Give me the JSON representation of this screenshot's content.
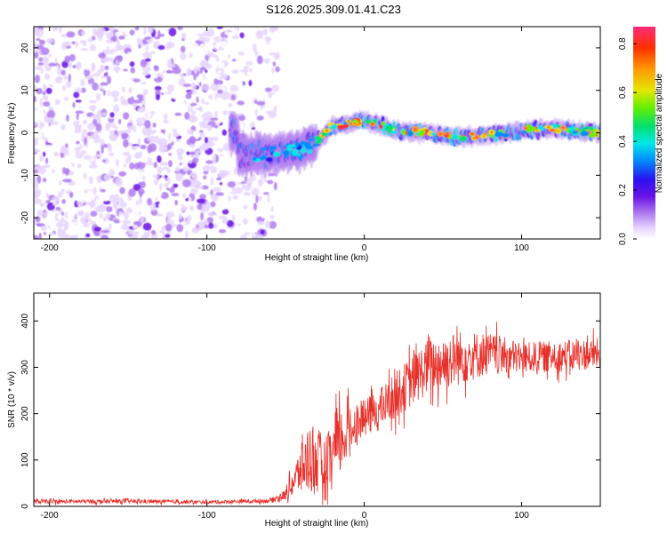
{
  "title": "S126.2025.309.01.41.C23",
  "chart_data": [
    {
      "type": "heatmap",
      "title": "",
      "xlabel": "Height of straight line (km)",
      "ylabel": "Frequency (Hz)",
      "xlim": [
        -210,
        150
      ],
      "ylim": [
        -25,
        25
      ],
      "x_ticks": [
        -200,
        -100,
        0,
        100
      ],
      "x_tick_labels": [
        "-200",
        "-100",
        "0",
        "100"
      ],
      "y_ticks": [
        -20,
        -10,
        0,
        10,
        20
      ],
      "y_tick_labels": [
        "-20",
        "-10",
        "0",
        "10",
        "20"
      ],
      "colorbar": {
        "label": "Normalized spectral amplitude",
        "range": [
          0.0,
          0.87
        ],
        "ticks": [
          0.0,
          0.2,
          0.4,
          0.6,
          0.8
        ],
        "tick_labels": [
          "0.0",
          "0.2",
          "0.4",
          "0.6",
          "0.8"
        ],
        "colormap": "rainbow"
      },
      "features": [
        {
          "name": "diffuse noise region",
          "x_range": [
            -210,
            -60
          ],
          "freq_range": [
            -25,
            25
          ],
          "amplitude": "0.05-0.25"
        },
        {
          "name": "central ridge",
          "x_range": [
            -80,
            150
          ],
          "center_freq_hz": [
            {
              "x": -80,
              "f": -5
            },
            {
              "x": -60,
              "f": -5
            },
            {
              "x": -40,
              "f": -4
            },
            {
              "x": -30,
              "f": -2
            },
            {
              "x": -20,
              "f": 1.5
            },
            {
              "x": 0,
              "f": 3
            },
            {
              "x": 20,
              "f": 0.5
            },
            {
              "x": 40,
              "f": 0
            },
            {
              "x": 60,
              "f": -1
            },
            {
              "x": 80,
              "f": -0.5
            },
            {
              "x": 100,
              "f": 0.5
            },
            {
              "x": 120,
              "f": 1
            },
            {
              "x": 150,
              "f": 0
            }
          ],
          "peak_amplitude": 0.87
        }
      ]
    },
    {
      "type": "line",
      "title": "",
      "xlabel": "Height of straight line (km)",
      "ylabel": "SNR (10 * v/v)",
      "xlim": [
        -210,
        150
      ],
      "ylim": [
        0,
        460
      ],
      "x_ticks": [
        -200,
        -100,
        0,
        100
      ],
      "x_tick_labels": [
        "-200",
        "-100",
        "0",
        "100"
      ],
      "y_ticks": [
        0,
        100,
        200,
        300,
        400
      ],
      "y_tick_labels": [
        "0",
        "100",
        "200",
        "300",
        "400"
      ],
      "color": "#e8302a",
      "series": [
        {
          "name": "SNR",
          "envelope": [
            {
              "x": -210,
              "mean": 10,
              "spread": 6
            },
            {
              "x": -150,
              "mean": 11,
              "spread": 6
            },
            {
              "x": -100,
              "mean": 9,
              "spread": 5
            },
            {
              "x": -60,
              "mean": 12,
              "spread": 6
            },
            {
              "x": -50,
              "mean": 25,
              "spread": 15
            },
            {
              "x": -42,
              "mean": 70,
              "spread": 60
            },
            {
              "x": -34,
              "mean": 110,
              "spread": 110
            },
            {
              "x": -25,
              "mean": 80,
              "spread": 90
            },
            {
              "x": -15,
              "mean": 140,
              "spread": 100
            },
            {
              "x": -5,
              "mean": 180,
              "spread": 50
            },
            {
              "x": 10,
              "mean": 210,
              "spread": 60
            },
            {
              "x": 25,
              "mean": 255,
              "spread": 70
            },
            {
              "x": 40,
              "mean": 300,
              "spread": 80
            },
            {
              "x": 60,
              "mean": 320,
              "spread": 80
            },
            {
              "x": 80,
              "mean": 330,
              "spread": 60
            },
            {
              "x": 100,
              "mean": 320,
              "spread": 45
            },
            {
              "x": 130,
              "mean": 325,
              "spread": 45
            },
            {
              "x": 150,
              "mean": 330,
              "spread": 45
            }
          ]
        }
      ]
    }
  ]
}
